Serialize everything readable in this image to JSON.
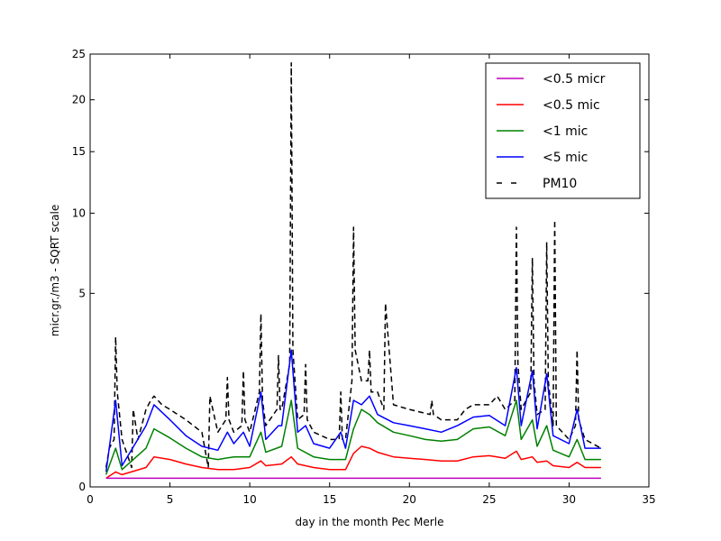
{
  "chart_data": {
    "type": "line",
    "xlabel": "day in the month Pec Merle",
    "ylabel": "micr.gr./m3 - SQRT scale",
    "xlim": [
      0,
      35
    ],
    "ylim": [
      0,
      25
    ],
    "y_scale": "sqrt",
    "x_ticks": [
      "0",
      "5",
      "10",
      "15",
      "20",
      "25",
      "30",
      "35"
    ],
    "y_ticks": [
      "0",
      "5",
      "10",
      "15",
      "20",
      "25"
    ],
    "grid": false,
    "legend_position": "top-right",
    "series": [
      {
        "name": "<0.5 micr",
        "color": "#bf00bf",
        "style": "solid",
        "x": [
          1,
          5,
          10,
          15,
          20,
          25,
          30,
          32
        ],
        "y": [
          0.01,
          0.01,
          0.01,
          0.01,
          0.01,
          0.01,
          0.01,
          0.01
        ]
      },
      {
        "name": "<0.5 mic",
        "color": "#ff0000",
        "style": "solid",
        "x": [
          1,
          1.6,
          2,
          3.5,
          4,
          5,
          6,
          7,
          8,
          9,
          10,
          10.7,
          11,
          12,
          12.6,
          13,
          14,
          15,
          16,
          16.5,
          17,
          17.5,
          18,
          19,
          20,
          21,
          22,
          23,
          24,
          25,
          26,
          26.7,
          27,
          27.7,
          28,
          28.6,
          29,
          30,
          30.5,
          31,
          32
        ],
        "y": [
          0.01,
          0.03,
          0.02,
          0.05,
          0.12,
          0.1,
          0.07,
          0.05,
          0.04,
          0.04,
          0.05,
          0.09,
          0.06,
          0.07,
          0.12,
          0.07,
          0.05,
          0.04,
          0.04,
          0.15,
          0.22,
          0.2,
          0.16,
          0.12,
          0.11,
          0.1,
          0.09,
          0.09,
          0.12,
          0.13,
          0.11,
          0.17,
          0.1,
          0.12,
          0.08,
          0.09,
          0.06,
          0.05,
          0.08,
          0.05,
          0.05
        ]
      },
      {
        "name": "<1 mic",
        "color": "#008000",
        "style": "solid",
        "x": [
          1,
          1.6,
          2,
          3.5,
          4,
          5,
          6,
          7,
          8,
          9,
          10,
          10.7,
          11,
          12,
          12.6,
          13,
          14,
          15,
          16,
          16.5,
          17,
          17.5,
          18,
          19,
          20,
          21,
          22,
          23,
          24,
          25,
          26,
          26.7,
          27,
          27.7,
          28,
          28.6,
          29,
          30,
          30.5,
          31,
          32
        ],
        "y": [
          0.02,
          0.2,
          0.04,
          0.2,
          0.45,
          0.32,
          0.2,
          0.12,
          0.1,
          0.12,
          0.12,
          0.4,
          0.16,
          0.22,
          1.0,
          0.2,
          0.12,
          0.1,
          0.1,
          0.45,
          0.8,
          0.7,
          0.55,
          0.4,
          0.35,
          0.3,
          0.28,
          0.3,
          0.45,
          0.48,
          0.35,
          1.0,
          0.3,
          0.6,
          0.22,
          0.5,
          0.18,
          0.12,
          0.3,
          0.1,
          0.1
        ]
      },
      {
        "name": "<5 mic",
        "color": "#0000ff",
        "style": "solid",
        "x": [
          1,
          1.6,
          2,
          3.5,
          4,
          5,
          6,
          7,
          8,
          8.6,
          9,
          9.6,
          10,
          10.7,
          11,
          11.8,
          12,
          12.6,
          13,
          13.5,
          14,
          15,
          15.7,
          16,
          16.5,
          17,
          17.5,
          18,
          19,
          20,
          21,
          22,
          23,
          24,
          25,
          26,
          26.7,
          27,
          27.7,
          28,
          28.6,
          29,
          30,
          30.5,
          31,
          32
        ],
        "y": [
          0.03,
          1.0,
          0.06,
          0.5,
          0.9,
          0.6,
          0.35,
          0.22,
          0.18,
          0.4,
          0.25,
          0.4,
          0.22,
          1.2,
          0.3,
          0.5,
          0.5,
          2.5,
          0.4,
          0.5,
          0.25,
          0.2,
          0.4,
          0.2,
          1.0,
          0.9,
          1.1,
          0.7,
          0.55,
          0.5,
          0.45,
          0.4,
          0.5,
          0.65,
          0.68,
          0.5,
          1.9,
          0.5,
          1.8,
          0.45,
          1.7,
          0.35,
          0.25,
          0.8,
          0.2,
          0.2
        ]
      },
      {
        "name": "PM10",
        "color": "#000000",
        "style": "dashed",
        "x": [
          1,
          1.2,
          1.5,
          1.6,
          1.7,
          2,
          2.6,
          2.7,
          3,
          3.5,
          3.8,
          4,
          4.5,
          5,
          6,
          7,
          7.4,
          7.5,
          8,
          8.5,
          8.6,
          8.7,
          9,
          9.5,
          9.6,
          9.7,
          10,
          10.6,
          10.7,
          10.8,
          11,
          11.7,
          11.8,
          11.9,
          12,
          12.5,
          12.6,
          12.7,
          13,
          13.4,
          13.5,
          13.6,
          14,
          15,
          15.6,
          15.7,
          15.8,
          16,
          16.4,
          16.5,
          16.6,
          17,
          17.4,
          17.5,
          17.6,
          18,
          18.4,
          18.5,
          19,
          20,
          21.3,
          21.4,
          21.5,
          22,
          23,
          23.5,
          24,
          25,
          25.5,
          26,
          26.6,
          26.7,
          26.8,
          27,
          27.6,
          27.7,
          27.8,
          28,
          28.5,
          28.6,
          28.7,
          29,
          29.1,
          29.2,
          30,
          30.4,
          30.5,
          30.6,
          31,
          32
        ],
        "y": [
          0.05,
          0.2,
          0.3,
          3.0,
          1.2,
          0.3,
          0.05,
          0.8,
          0.3,
          0.8,
          1.0,
          1.1,
          0.9,
          0.8,
          0.6,
          0.4,
          0.05,
          1.1,
          0.4,
          0.6,
          1.6,
          0.6,
          0.4,
          0.5,
          1.8,
          0.6,
          0.4,
          1.2,
          4.0,
          1.0,
          0.5,
          0.8,
          2.3,
          0.8,
          0.8,
          2.0,
          24.0,
          2.5,
          0.6,
          0.7,
          2.0,
          0.6,
          0.4,
          0.3,
          0.3,
          1.2,
          0.3,
          0.3,
          1.5,
          9.0,
          2.5,
          1.5,
          1.5,
          2.5,
          1.2,
          1.2,
          0.8,
          4.5,
          0.9,
          0.8,
          0.7,
          1.0,
          0.7,
          0.6,
          0.6,
          0.8,
          0.9,
          0.9,
          1.1,
          0.8,
          1.0,
          9.0,
          2.0,
          0.8,
          1.2,
          7.0,
          1.5,
          0.7,
          0.8,
          8.0,
          1.5,
          0.5,
          9.5,
          0.5,
          0.3,
          0.5,
          2.5,
          0.6,
          0.3,
          0.2
        ]
      }
    ]
  }
}
